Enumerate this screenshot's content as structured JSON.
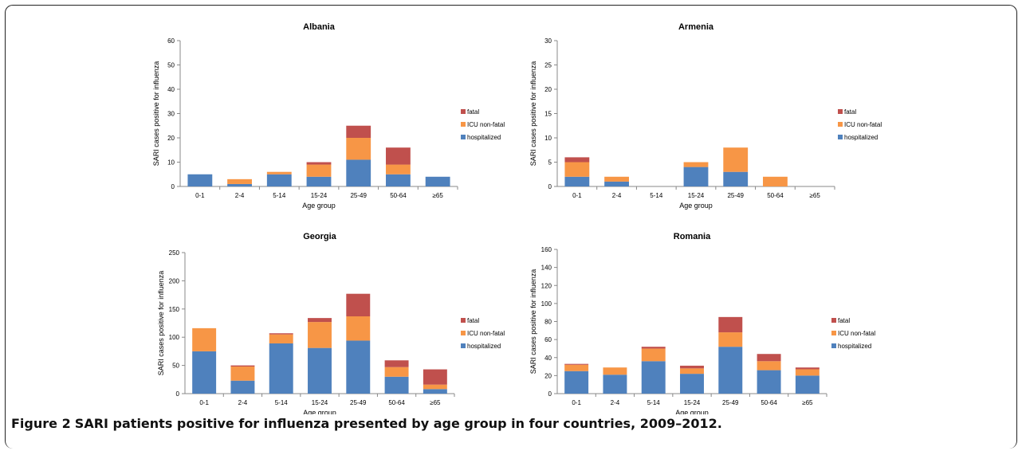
{
  "figure": {
    "caption_label": "Figure 2",
    "caption_text": "SARI patients positive for influenza presented by age group in four countries, 2009–2012."
  },
  "colors": {
    "hospitalized": "#4f81bd",
    "icu": "#f79646",
    "fatal": "#c0504d",
    "axis": "#888888"
  },
  "chart_data": [
    {
      "type": "bar",
      "stacked": true,
      "title": "Albania",
      "xlabel": "Age group",
      "ylabel": "SARI cases positive for influenza",
      "ylim": [
        0,
        60
      ],
      "yticks": [
        0,
        10,
        20,
        30,
        40,
        50,
        60
      ],
      "categories": [
        "0-1",
        "2-4",
        "5-14",
        "15-24",
        "25-49",
        "50-64",
        "≥65"
      ],
      "series": [
        {
          "name": "hospitalized",
          "values": [
            5,
            1,
            5,
            4,
            11,
            5,
            4
          ]
        },
        {
          "name": "ICU non-fatal",
          "values": [
            0,
            2,
            1,
            5,
            9,
            4,
            0
          ]
        },
        {
          "name": "fatal",
          "values": [
            0,
            0,
            0,
            1,
            5,
            7,
            0
          ]
        }
      ],
      "legend": "right"
    },
    {
      "type": "bar",
      "stacked": true,
      "title": "Armenia",
      "xlabel": "Age group",
      "ylabel": "SARI cases positive for influenza",
      "ylim": [
        0,
        30
      ],
      "yticks": [
        0,
        5,
        10,
        15,
        20,
        25,
        30
      ],
      "categories": [
        "0-1",
        "2-4",
        "5-14",
        "15-24",
        "25-49",
        "50-64",
        "≥65"
      ],
      "series": [
        {
          "name": "hospitalized",
          "values": [
            2,
            1,
            0,
            4,
            3,
            0,
            0
          ]
        },
        {
          "name": "ICU non-fatal",
          "values": [
            3,
            1,
            0,
            1,
            5,
            2,
            0
          ]
        },
        {
          "name": "fatal",
          "values": [
            1,
            0,
            0,
            0,
            0,
            0,
            0
          ]
        }
      ],
      "legend": "right"
    },
    {
      "type": "bar",
      "stacked": true,
      "title": "Georgia",
      "xlabel": "Age group",
      "ylabel": "SARI cases positive for influenza",
      "ylim": [
        0,
        250
      ],
      "yticks": [
        0,
        50,
        100,
        150,
        200,
        250
      ],
      "categories": [
        "0-1",
        "2-4",
        "5-14",
        "15-24",
        "25-49",
        "50-64",
        "≥65"
      ],
      "series": [
        {
          "name": "hospitalized",
          "values": [
            75,
            23,
            89,
            81,
            94,
            30,
            8
          ]
        },
        {
          "name": "ICU non-fatal",
          "values": [
            41,
            25,
            16,
            46,
            43,
            17,
            8
          ]
        },
        {
          "name": "fatal",
          "values": [
            0,
            2,
            2,
            7,
            40,
            12,
            27
          ]
        }
      ],
      "legend": "right"
    },
    {
      "type": "bar",
      "stacked": true,
      "title": "Romania",
      "xlabel": "Age group",
      "ylabel": "SARI cases positive for influenza",
      "ylim": [
        0,
        160
      ],
      "yticks": [
        0,
        20,
        40,
        60,
        80,
        100,
        120,
        140,
        160
      ],
      "categories": [
        "0-1",
        "2-4",
        "5-14",
        "15-24",
        "25-49",
        "50-64",
        "≥65"
      ],
      "series": [
        {
          "name": "hospitalized",
          "values": [
            25,
            21,
            36,
            22,
            52,
            26,
            20
          ]
        },
        {
          "name": "ICU non-fatal",
          "values": [
            7,
            8,
            14,
            6,
            16,
            10,
            7
          ]
        },
        {
          "name": "fatal",
          "values": [
            1,
            0,
            2,
            3,
            17,
            8,
            2
          ]
        }
      ],
      "legend": "right"
    }
  ]
}
